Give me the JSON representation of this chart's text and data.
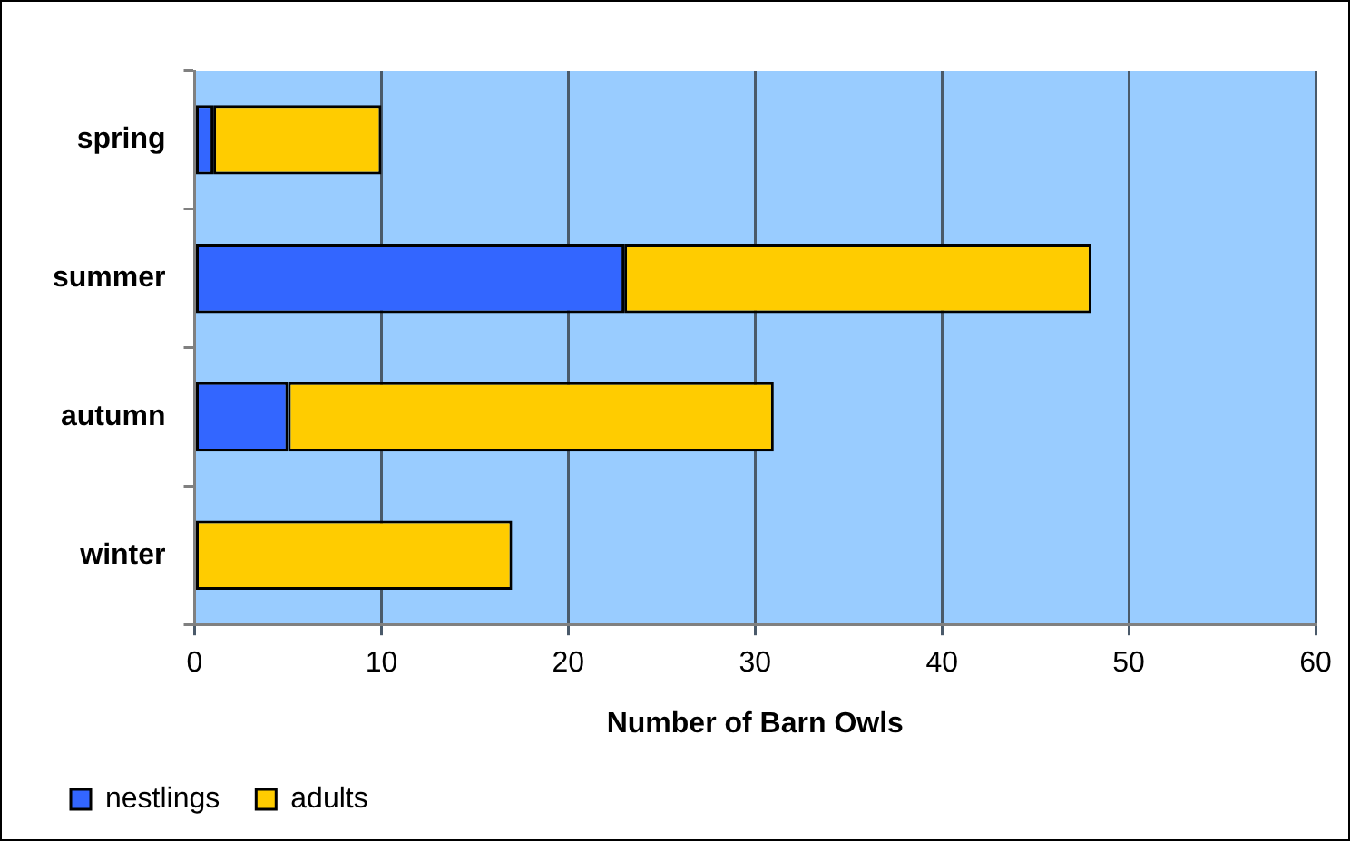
{
  "chart_data": {
    "type": "bar",
    "orientation": "horizontal",
    "stacked": true,
    "xlabel": "Number of Barn Owls",
    "categories": [
      "spring",
      "summer",
      "autumn",
      "winter"
    ],
    "series": [
      {
        "name": "nestlings",
        "color": "#3366ff",
        "values": [
          1,
          23,
          5,
          0
        ]
      },
      {
        "name": "adults",
        "color": "#ffcc00",
        "values": [
          9,
          25,
          26,
          17
        ]
      }
    ],
    "xlim": [
      0,
      60
    ],
    "xticks": [
      0,
      10,
      20,
      30,
      40,
      50,
      60
    ],
    "grid": "x",
    "legend": "bottom left"
  }
}
